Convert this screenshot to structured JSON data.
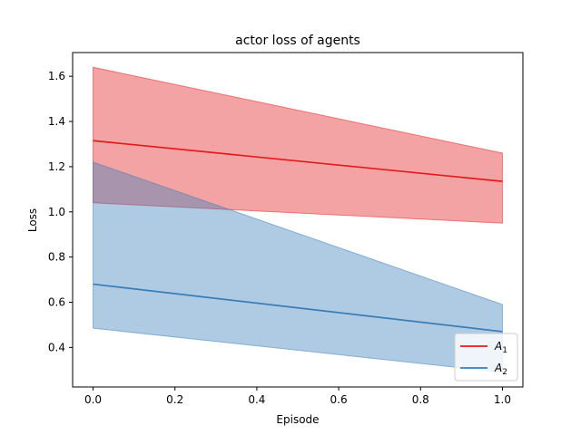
{
  "chart_data": {
    "type": "line",
    "title": "actor loss of agents",
    "xlabel": "Episode",
    "ylabel": "Loss",
    "xlim": [
      -0.05,
      1.05
    ],
    "ylim": [
      0.225,
      1.705
    ],
    "xticks": [
      0.0,
      0.2,
      0.4,
      0.6,
      0.8,
      1.0
    ],
    "xtick_labels": [
      "0.0",
      "0.2",
      "0.4",
      "0.6",
      "0.8",
      "1.0"
    ],
    "yticks": [
      0.4,
      0.6,
      0.8,
      1.0,
      1.2,
      1.4,
      1.6
    ],
    "ytick_labels": [
      "0.4",
      "0.6",
      "0.8",
      "1.0",
      "1.2",
      "1.4",
      "1.6"
    ],
    "grid": false,
    "legend_position": "bottom-right",
    "series": [
      {
        "name": "A1",
        "legend_base": "A",
        "legend_sub": "1",
        "color": "#e41a1c",
        "band_color": "#e41a1c",
        "x": [
          0.0,
          1.0
        ],
        "mean": [
          1.315,
          1.135
        ],
        "upper": [
          1.64,
          1.26
        ],
        "lower": [
          1.04,
          0.95
        ]
      },
      {
        "name": "A2",
        "legend_base": "A",
        "legend_sub": "2",
        "color": "#377eb8",
        "band_color": "#377eb8",
        "x": [
          0.0,
          1.0
        ],
        "mean": [
          0.68,
          0.47
        ],
        "upper": [
          1.22,
          0.59
        ],
        "lower": [
          0.485,
          0.29
        ]
      }
    ]
  }
}
